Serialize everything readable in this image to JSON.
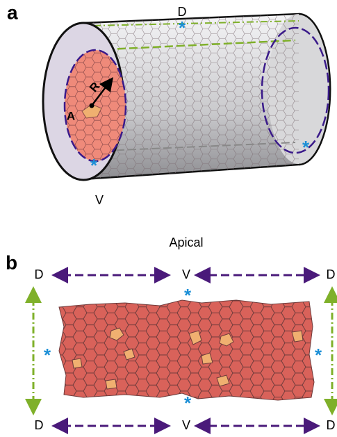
{
  "panel_a": {
    "label": "a",
    "dorsal": "D",
    "ventral": "V",
    "radius": "R",
    "area": "A",
    "markers": [
      "*",
      "*",
      "*"
    ]
  },
  "panel_b": {
    "label": "b",
    "title": "Apical",
    "top_labels": [
      "D",
      "V",
      "D"
    ],
    "bottom_labels": [
      "D",
      "V",
      "D"
    ],
    "markers": [
      "*",
      "*",
      "*",
      "*"
    ]
  }
}
